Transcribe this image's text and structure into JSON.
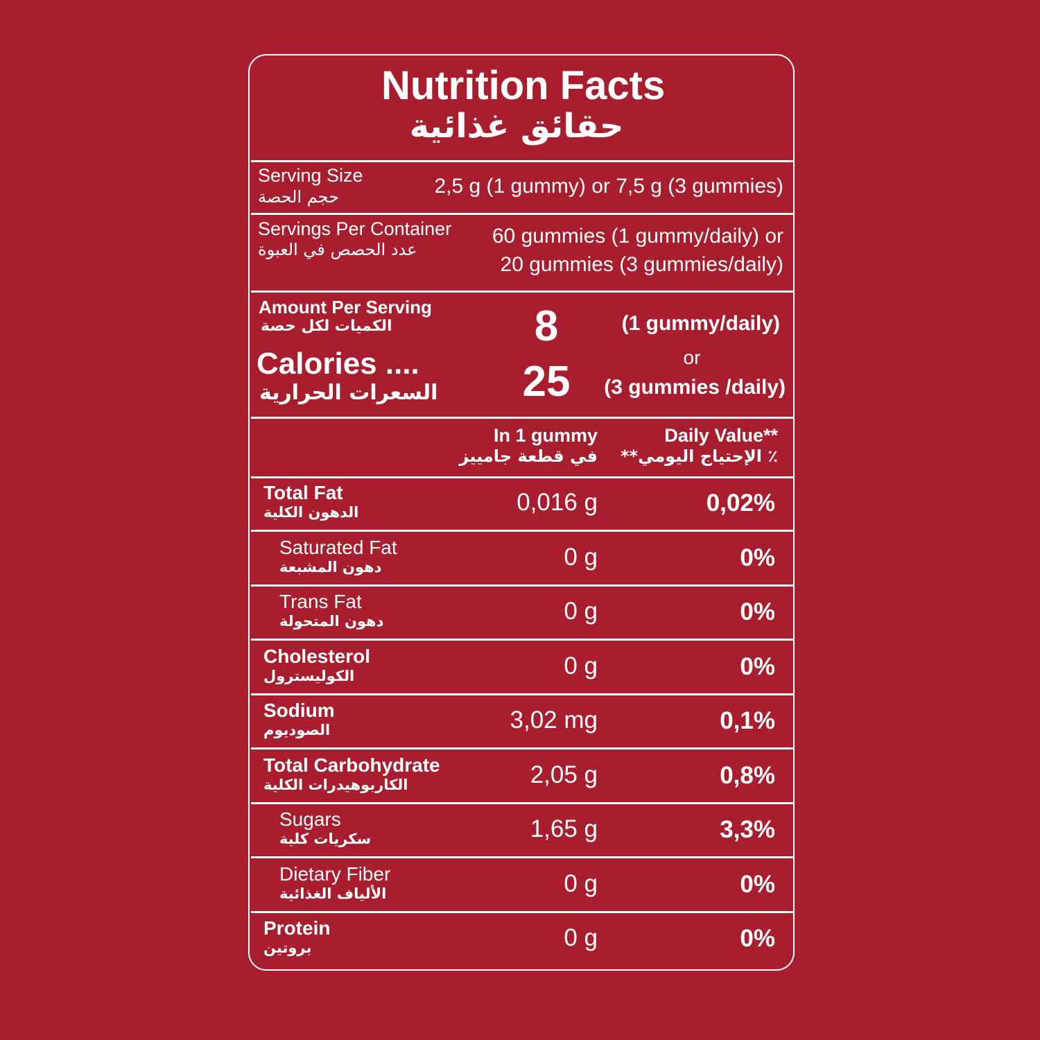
{
  "header": {
    "title": "Nutrition Facts",
    "title_ar": "حقائق غذائية"
  },
  "serving_size": {
    "label": "Serving Size",
    "label_ar": "حجم الحصة",
    "value": "2,5 g (1 gummy) or 7,5 g (3 gummies)"
  },
  "servings_per_container": {
    "label": "Servings Per Container",
    "label_ar": "عدد الحصص في العبوة",
    "value_lines": [
      "60 gummies (1 gummy/daily) or",
      "20 gummies (3 gummies/daily)"
    ]
  },
  "calories": {
    "amount_label": "Amount Per Serving",
    "amount_label_ar": "الكميات لكل حصة",
    "label": "Calories ....",
    "label_ar": "السعرات الحرارية",
    "value_1": "8",
    "value_2": "25",
    "note_1": "(1 gummy/daily)",
    "or": "or",
    "note_2": "(3 gummies /daily)"
  },
  "columns": {
    "amount": "In 1 gummy",
    "amount_ar": "في قطعة جامييز",
    "dv": "Daily Value**",
    "dv_ar": "**الإحتياج اليومي ٪"
  },
  "rows": [
    {
      "name": "Total Fat",
      "name_ar": "الدهون الكلية",
      "amount": "0,016 g",
      "dv": "0,02%"
    },
    {
      "name": "Saturated Fat",
      "name_ar": "دهون المشبعة",
      "amount": "0 g",
      "dv": "0%"
    },
    {
      "name": "Trans Fat",
      "name_ar": "دهون المتحولة",
      "amount": "0 g",
      "dv": "0%"
    },
    {
      "name": "Cholesterol",
      "name_ar": "الكوليسترول",
      "amount": "0 g",
      "dv": "0%"
    },
    {
      "name": "Sodium",
      "name_ar": "الصوديوم",
      "amount": "3,02 mg",
      "dv": "0,1%"
    },
    {
      "name": "Total Carbohydrate",
      "name_ar": "الكاربوهيدرات الكلية",
      "amount": "2,05 g",
      "dv": "0,8%"
    },
    {
      "name": "Sugars",
      "name_ar": "سكريات كلية",
      "amount": "1,65 g",
      "dv": "3,3%"
    },
    {
      "name": "Dietary Fiber",
      "name_ar": "الألياف الغذائية",
      "amount": "0 g",
      "dv": "0%"
    },
    {
      "name": "Protein",
      "name_ar": "بروتين",
      "amount": "0 g",
      "dv": "0%"
    }
  ]
}
